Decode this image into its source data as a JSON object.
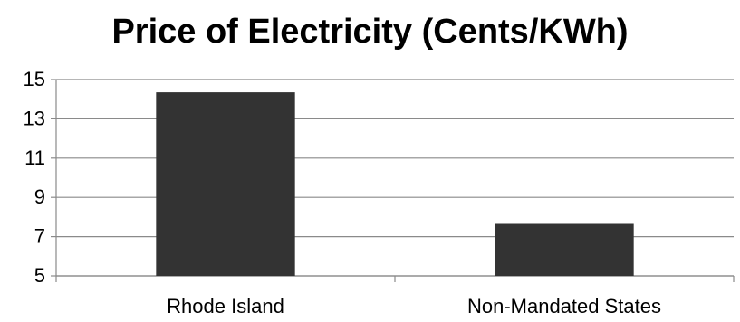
{
  "chart_data": {
    "type": "bar",
    "title": "Price of Electricity (Cents/KWh)",
    "categories": [
      "Rhode Island",
      "Non-Mandated States"
    ],
    "values": [
      14.35,
      7.65
    ],
    "ylim": [
      5,
      15
    ],
    "yticks": [
      5,
      7,
      9,
      11,
      13,
      15
    ],
    "grid": true,
    "bar_color": "#333333",
    "grid_color": "#8a8a8a"
  }
}
